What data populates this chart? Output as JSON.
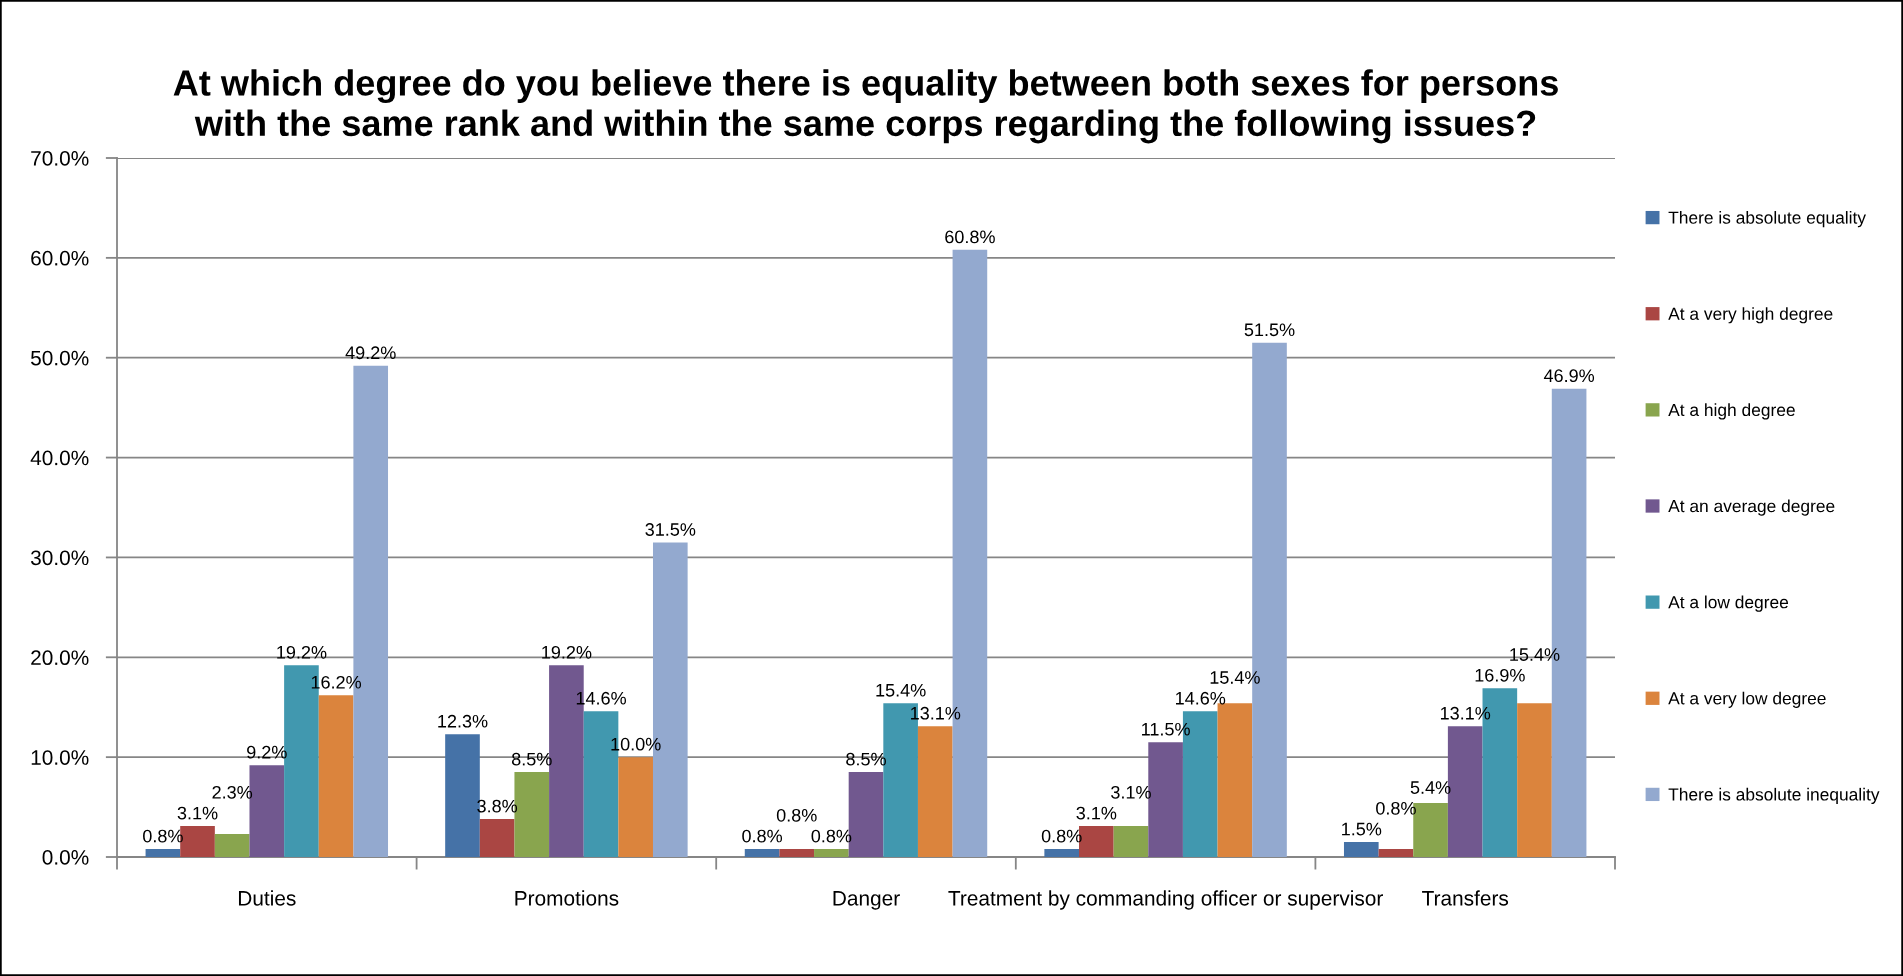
{
  "chart_data": {
    "type": "bar",
    "title": "At which degree do you believe there is equality between both sexes for persons\nwith the same rank and within the same corps regarding the following issues?",
    "categories": [
      "Duties",
      "Promotions",
      "Danger",
      "Treatment by commanding officer or supervisor",
      "Transfers"
    ],
    "ylim": [
      0,
      70
    ],
    "yticks": [
      {
        "value": 0,
        "label": "0.0%"
      },
      {
        "value": 10,
        "label": "10.0%"
      },
      {
        "value": 20,
        "label": "20.0%"
      },
      {
        "value": 30,
        "label": "30.0%"
      },
      {
        "value": 40,
        "label": "40.0%"
      },
      {
        "value": 50,
        "label": "50.0%"
      },
      {
        "value": 60,
        "label": "60.0%"
      },
      {
        "value": 70,
        "label": "70.0%"
      }
    ],
    "grid": "y",
    "legend": "right",
    "series": [
      {
        "name": "There is absolute equality",
        "color": "#4572a7",
        "values": [
          0.8,
          12.3,
          0.8,
          0.8,
          1.5
        ],
        "value_labels": [
          "0.8%",
          "12.3%",
          "0.8%",
          "0.8%",
          "1.5%"
        ]
      },
      {
        "name": "At a very high degree",
        "color": "#aa4643",
        "values": [
          3.1,
          3.8,
          0.8,
          3.1,
          0.8
        ],
        "value_labels": [
          "3.1%",
          "3.8%",
          "0.8%",
          "3.1%",
          "0.8%"
        ]
      },
      {
        "name": "At a high degree",
        "color": "#89a54e",
        "values": [
          2.3,
          8.5,
          0.8,
          3.1,
          5.4
        ],
        "value_labels": [
          "2.3%",
          "8.5%",
          "0.8%",
          "3.1%",
          "5.4%"
        ]
      },
      {
        "name": "At an average degree",
        "color": "#71588f",
        "values": [
          9.2,
          19.2,
          8.5,
          11.5,
          13.1
        ],
        "value_labels": [
          "9.2%",
          "19.2%",
          "8.5%",
          "11.5%",
          "13.1%"
        ]
      },
      {
        "name": "At a low degree",
        "color": "#4198af",
        "values": [
          19.2,
          14.6,
          15.4,
          14.6,
          16.9
        ],
        "value_labels": [
          "19.2%",
          "14.6%",
          "15.4%",
          "14.6%",
          "16.9%"
        ]
      },
      {
        "name": "At a very low degree",
        "color": "#db843d",
        "values": [
          16.2,
          10.0,
          13.1,
          15.4,
          15.4
        ],
        "value_labels": [
          "16.2%",
          "10.0%",
          "13.1%",
          "15.4%",
          "15.4%"
        ]
      },
      {
        "name": "There is absolute inequality",
        "color": "#93a9cf",
        "values": [
          49.2,
          31.5,
          60.8,
          51.5,
          46.9
        ],
        "value_labels": [
          "49.2%",
          "31.5%",
          "60.8%",
          "51.5%",
          "46.9%"
        ]
      }
    ]
  }
}
